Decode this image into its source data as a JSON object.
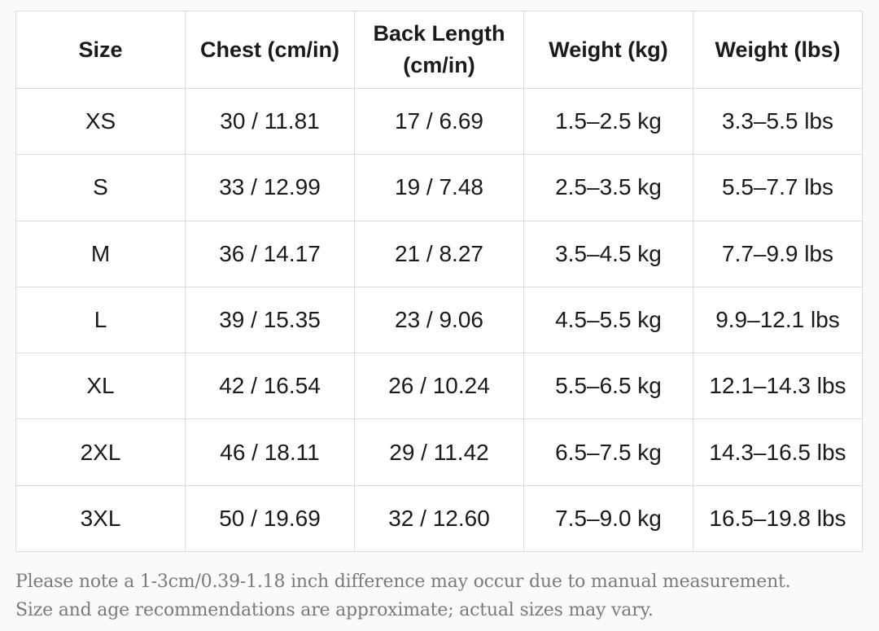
{
  "table": {
    "headers": [
      "Size",
      "Chest (cm/in)",
      "Back Length (cm/in)",
      "Weight (kg)",
      "Weight (lbs)"
    ],
    "rows": [
      [
        "XS",
        "30 / 11.81",
        "17 / 6.69",
        "1.5–2.5 kg",
        "3.3–5.5 lbs"
      ],
      [
        "S",
        "33 / 12.99",
        "19 / 7.48",
        "2.5–3.5 kg",
        "5.5–7.7 lbs"
      ],
      [
        "M",
        "36 / 14.17",
        "21 / 8.27",
        "3.5–4.5 kg",
        "7.7–9.9 lbs"
      ],
      [
        "L",
        "39 / 15.35",
        "23 / 9.06",
        "4.5–5.5 kg",
        "9.9–12.1 lbs"
      ],
      [
        "XL",
        "42 / 16.54",
        "26 / 10.24",
        "5.5–6.5 kg",
        "12.1–14.3 lbs"
      ],
      [
        "2XL",
        "46 / 18.11",
        "29 / 11.42",
        "6.5–7.5 kg",
        "14.3–16.5 lbs"
      ],
      [
        "3XL",
        "50 / 19.69",
        "32 / 12.60",
        "7.5–9.0 kg",
        "16.5–19.8 lbs"
      ]
    ]
  },
  "notes": {
    "line1": "Please note a 1-3cm/0.39-1.18 inch difference may occur due to manual measurement.",
    "line2": "Size and age recommendations are approximate; actual sizes may vary."
  },
  "colors": {
    "border": "#dcdcdc",
    "text": "#1a1a1a",
    "note_text": "#7a7a7a",
    "background": "#fafafa"
  }
}
